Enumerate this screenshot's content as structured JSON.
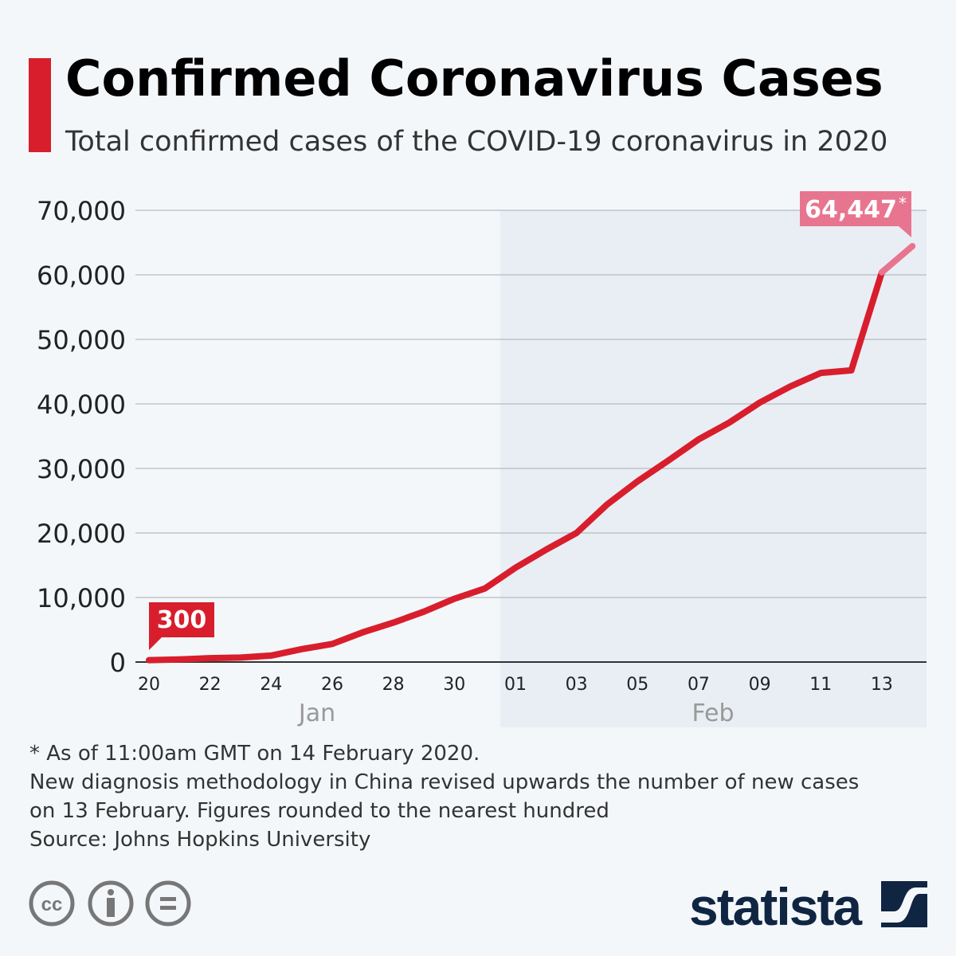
{
  "header": {
    "title": "Confirmed Coronavirus Cases",
    "subtitle": "Total confirmed cases of the COVID-19 coronavirus in 2020"
  },
  "chart_data": {
    "type": "line",
    "x": [
      "Jan 20",
      "Jan 21",
      "Jan 22",
      "Jan 23",
      "Jan 24",
      "Jan 25",
      "Jan 26",
      "Jan 27",
      "Jan 28",
      "Jan 29",
      "Jan 30",
      "Jan 31",
      "Feb 01",
      "Feb 02",
      "Feb 03",
      "Feb 04",
      "Feb 05",
      "Feb 06",
      "Feb 07",
      "Feb 08",
      "Feb 09",
      "Feb 10",
      "Feb 11",
      "Feb 12",
      "Feb 13",
      "Feb 14"
    ],
    "values": [
      300,
      400,
      600,
      700,
      1000,
      2000,
      2800,
      4600,
      6100,
      7800,
      9800,
      11400,
      14600,
      17400,
      20000,
      24400,
      28000,
      31200,
      34500,
      37100,
      40200,
      42700,
      44800,
      45200,
      60400,
      64447
    ],
    "ylim": [
      0,
      70000
    ],
    "yticks": [
      "0",
      "10,000",
      "20,000",
      "30,000",
      "40,000",
      "50,000",
      "60,000",
      "70,000"
    ],
    "ytick_values": [
      0,
      10000,
      20000,
      30000,
      40000,
      50000,
      60000,
      70000
    ],
    "xticks": [
      "20",
      "22",
      "24",
      "26",
      "28",
      "30",
      "01",
      "03",
      "05",
      "07",
      "09",
      "11",
      "13"
    ],
    "xtick_indices": [
      0,
      2,
      4,
      6,
      8,
      10,
      12,
      14,
      16,
      18,
      20,
      22,
      24
    ],
    "month_labels": [
      "Jan",
      "Feb"
    ],
    "annotations": {
      "first": "300",
      "last": "64,447",
      "last_mark": "*"
    },
    "grid": true,
    "colors": {
      "line": "#d81e2c",
      "last_segment": "#e8758f",
      "feb_shade": "#e9eef5",
      "grid": "#a9adb2"
    }
  },
  "notes": {
    "line1": "* As of 11:00am GMT on 14 February 2020.",
    "line2": "New diagnosis methodology in China revised upwards the number of new cases",
    "line3": "on 13 February. Figures rounded to the nearest hundred",
    "line4": "Source: Johns Hopkins University"
  },
  "footer": {
    "brand": "statista",
    "license_icons": [
      "cc-icon",
      "attribution-icon",
      "no-derivatives-icon"
    ]
  }
}
